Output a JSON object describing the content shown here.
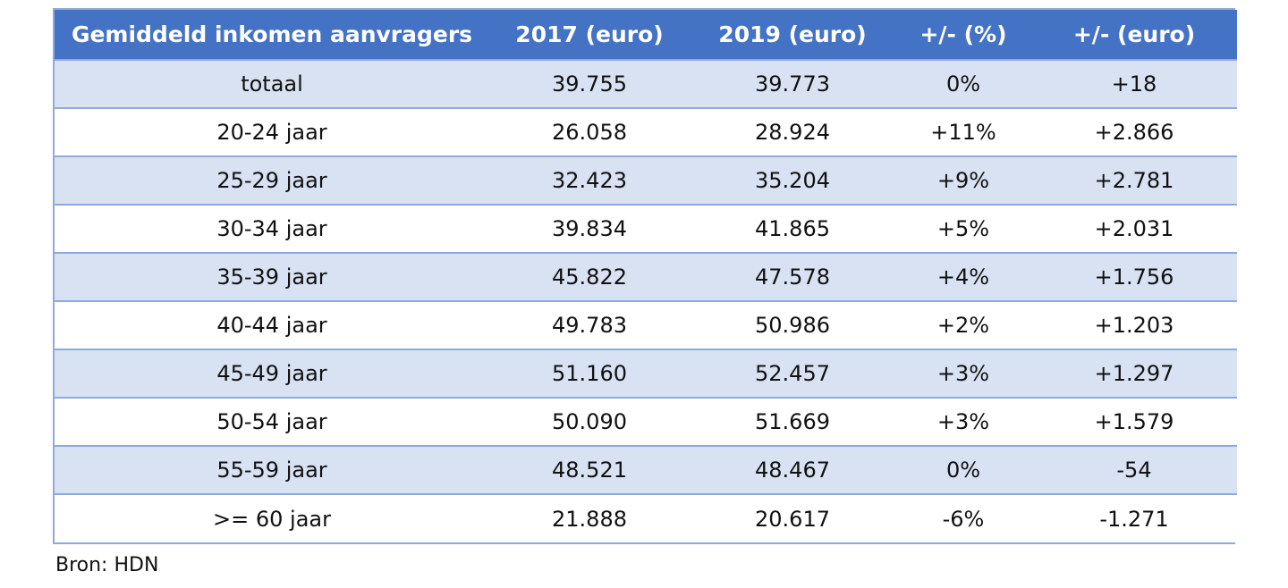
{
  "chart_data": {
    "type": "table",
    "columns": [
      "Gemiddeld inkomen aanvragers",
      "2017 (euro)",
      "2019 (euro)",
      "+/- (%)",
      "+/- (euro)"
    ],
    "rows": [
      [
        "totaal",
        "39.755",
        "39.773",
        "0%",
        "+18"
      ],
      [
        "20-24 jaar",
        "26.058",
        "28.924",
        "+11%",
        "+2.866"
      ],
      [
        "25-29 jaar",
        "32.423",
        "35.204",
        "+9%",
        "+2.781"
      ],
      [
        "30-34 jaar",
        "39.834",
        "41.865",
        "+5%",
        "+2.031"
      ],
      [
        "35-39 jaar",
        "45.822",
        "47.578",
        "+4%",
        "+1.756"
      ],
      [
        "40-44 jaar",
        "49.783",
        "50.986",
        "+2%",
        "+1.203"
      ],
      [
        "45-49 jaar",
        "51.160",
        "52.457",
        "+3%",
        "+1.297"
      ],
      [
        "50-54 jaar",
        "50.090",
        "51.669",
        "+3%",
        "+1.579"
      ],
      [
        "55-59 jaar",
        "48.521",
        "48.467",
        "0%",
        "-54"
      ],
      [
        ">= 60 jaar",
        "21.888",
        "20.617",
        "-6%",
        "-1.271"
      ]
    ]
  },
  "source": "Bron: HDN",
  "colors": {
    "header_bg": "#4472c4",
    "band_row": "#d9e2f3",
    "plain_row": "#ffffff",
    "border": "#8eaadb",
    "header_text": "#ffffff",
    "body_text": "#111111"
  }
}
